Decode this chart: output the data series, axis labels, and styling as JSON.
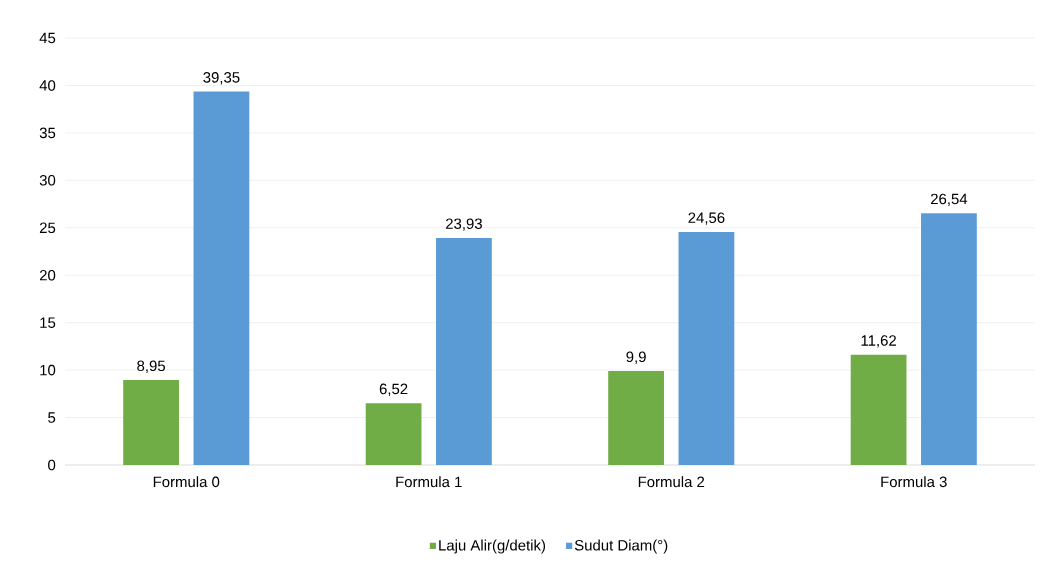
{
  "chart_data": {
    "type": "bar",
    "categories": [
      "Formula 0",
      "Formula 1",
      "Formula 2",
      "Formula 3"
    ],
    "series": [
      {
        "name": "Laju Alir(g/detik)",
        "color": "#70ad47",
        "values": [
          8.95,
          6.52,
          9.9,
          11.62
        ],
        "value_labels": [
          "8,95",
          "6,52",
          "9,9",
          "11,62"
        ]
      },
      {
        "name": "Sudut Diam(°)",
        "color": "#5b9bd5",
        "values": [
          39.35,
          23.93,
          24.56,
          26.54
        ],
        "value_labels": [
          "39,35",
          "23,93",
          "24,56",
          "26,54"
        ]
      }
    ],
    "ylim": [
      0,
      45
    ],
    "yticks": [
      0,
      5,
      10,
      15,
      20,
      25,
      30,
      35,
      40,
      45
    ],
    "grid": "y",
    "legend": "bottom"
  }
}
